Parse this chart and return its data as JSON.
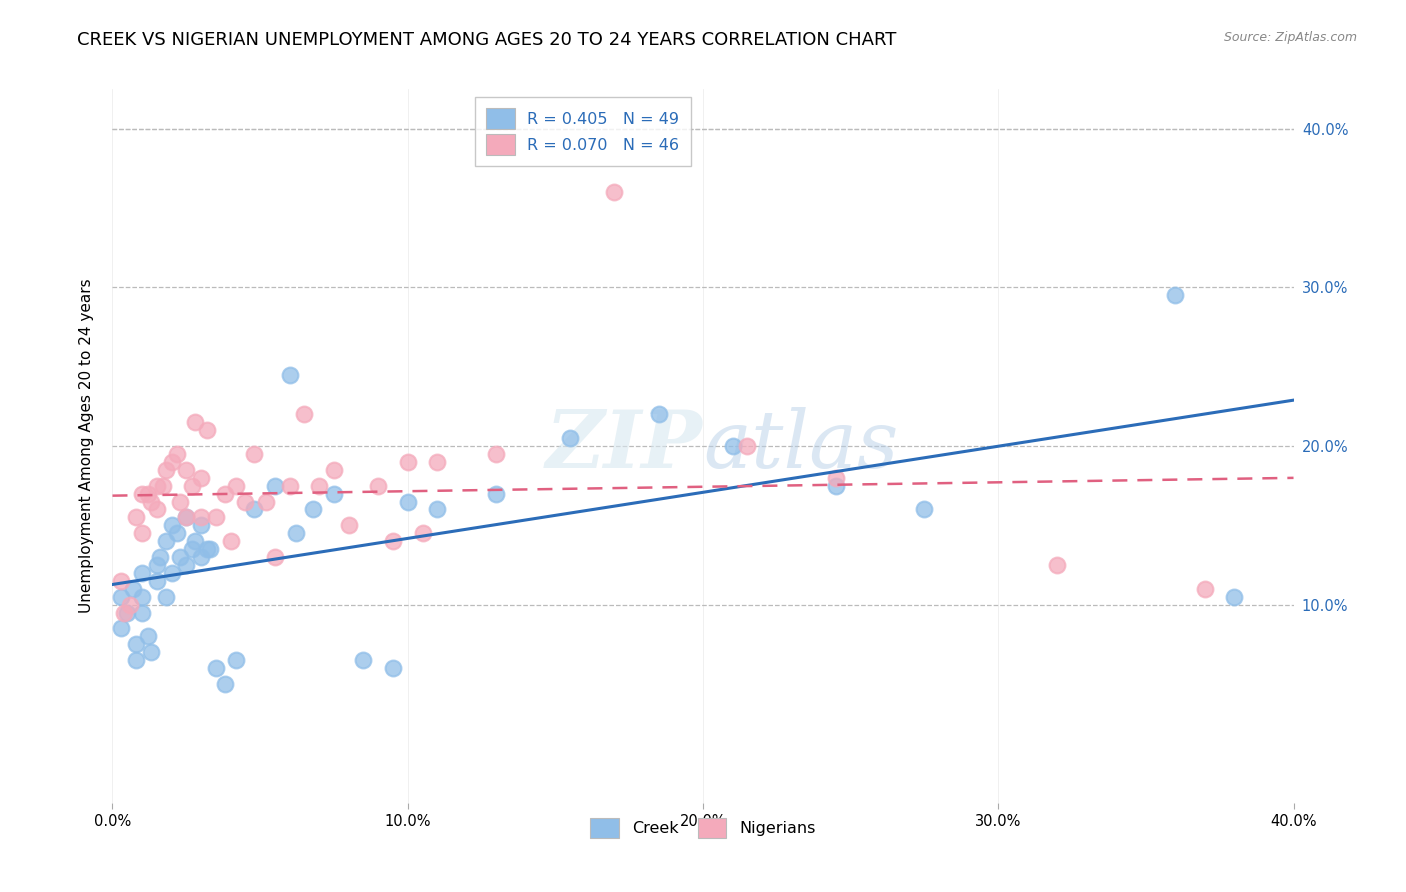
{
  "title": "CREEK VS NIGERIAN UNEMPLOYMENT AMONG AGES 20 TO 24 YEARS CORRELATION CHART",
  "source": "Source: ZipAtlas.com",
  "ylabel": "Unemployment Among Ages 20 to 24 years",
  "creek_color": "#90BEE8",
  "nigerian_color": "#F4AABB",
  "creek_line_color": "#2B6CB8",
  "nigerian_line_color": "#E06080",
  "background_color": "#FFFFFF",
  "watermark_text": "ZIPatlas",
  "creek_scatter_x": [
    0.003,
    0.003,
    0.005,
    0.007,
    0.008,
    0.008,
    0.01,
    0.01,
    0.01,
    0.012,
    0.013,
    0.015,
    0.015,
    0.016,
    0.018,
    0.018,
    0.02,
    0.02,
    0.022,
    0.023,
    0.025,
    0.025,
    0.027,
    0.028,
    0.03,
    0.03,
    0.032,
    0.033,
    0.035,
    0.038,
    0.042,
    0.048,
    0.055,
    0.06,
    0.062,
    0.068,
    0.075,
    0.085,
    0.095,
    0.1,
    0.11,
    0.13,
    0.155,
    0.185,
    0.21,
    0.245,
    0.275,
    0.36,
    0.38
  ],
  "creek_scatter_y": [
    0.105,
    0.085,
    0.095,
    0.11,
    0.075,
    0.065,
    0.12,
    0.105,
    0.095,
    0.08,
    0.07,
    0.125,
    0.115,
    0.13,
    0.14,
    0.105,
    0.15,
    0.12,
    0.145,
    0.13,
    0.155,
    0.125,
    0.135,
    0.14,
    0.15,
    0.13,
    0.135,
    0.135,
    0.06,
    0.05,
    0.065,
    0.16,
    0.175,
    0.245,
    0.145,
    0.16,
    0.17,
    0.065,
    0.06,
    0.165,
    0.16,
    0.17,
    0.205,
    0.22,
    0.2,
    0.175,
    0.16,
    0.295,
    0.105
  ],
  "nigerian_scatter_x": [
    0.003,
    0.004,
    0.006,
    0.008,
    0.01,
    0.01,
    0.012,
    0.013,
    0.015,
    0.015,
    0.017,
    0.018,
    0.02,
    0.022,
    0.023,
    0.025,
    0.025,
    0.027,
    0.028,
    0.03,
    0.03,
    0.032,
    0.035,
    0.038,
    0.04,
    0.042,
    0.045,
    0.048,
    0.052,
    0.055,
    0.06,
    0.065,
    0.07,
    0.075,
    0.08,
    0.09,
    0.095,
    0.1,
    0.105,
    0.11,
    0.13,
    0.17,
    0.215,
    0.245,
    0.32,
    0.37
  ],
  "nigerian_scatter_y": [
    0.115,
    0.095,
    0.1,
    0.155,
    0.145,
    0.17,
    0.17,
    0.165,
    0.175,
    0.16,
    0.175,
    0.185,
    0.19,
    0.195,
    0.165,
    0.185,
    0.155,
    0.175,
    0.215,
    0.155,
    0.18,
    0.21,
    0.155,
    0.17,
    0.14,
    0.175,
    0.165,
    0.195,
    0.165,
    0.13,
    0.175,
    0.22,
    0.175,
    0.185,
    0.15,
    0.175,
    0.14,
    0.19,
    0.145,
    0.19,
    0.195,
    0.36,
    0.2,
    0.18,
    0.125,
    0.11
  ],
  "grid_color": "#BBBBBB",
  "xlim": [
    0.0,
    0.4
  ],
  "ylim": [
    -0.025,
    0.425
  ],
  "y_ticks": [
    0.1,
    0.2,
    0.3,
    0.4
  ],
  "x_ticks": [
    0.0,
    0.1,
    0.2,
    0.3,
    0.4
  ],
  "title_fontsize": 13,
  "label_fontsize": 11,
  "tick_fontsize": 10.5,
  "right_tick_color": "#2B6CB8"
}
